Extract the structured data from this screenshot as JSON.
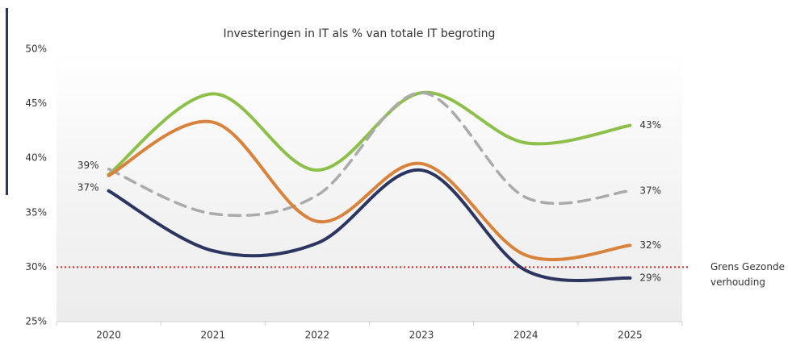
{
  "chart_data": {
    "type": "line",
    "title": "Investeringen in IT als % van totale IT begroting",
    "categories": [
      "2020",
      "2021",
      "2022",
      "2023",
      "2024",
      "2025"
    ],
    "series": [
      {
        "color": "#8dc04a",
        "dash": false,
        "values": [
          38.5,
          45.9,
          38.9,
          46,
          41.4,
          43
        ],
        "value_labels": [
          null,
          null,
          null,
          null,
          null,
          "43%"
        ]
      },
      {
        "color": "#aaaaaa",
        "dash": true,
        "values": [
          39,
          34.9,
          36.6,
          46,
          36.4,
          37
        ],
        "value_labels": [
          "39%",
          null,
          null,
          null,
          null,
          "37%"
        ]
      },
      {
        "color": "#d9823b",
        "dash": false,
        "values": [
          38.4,
          43.3,
          34.2,
          39.5,
          31.1,
          32
        ],
        "value_labels": [
          null,
          null,
          null,
          null,
          null,
          "32%"
        ]
      },
      {
        "color": "#2b3560",
        "dash": false,
        "values": [
          37,
          31.5,
          32.2,
          38.9,
          29.7,
          29
        ],
        "value_labels": [
          "37%",
          null,
          null,
          null,
          null,
          "29%"
        ]
      }
    ],
    "ylim": [
      25,
      50
    ],
    "yticks": [
      {
        "value": 25,
        "label": "25%"
      },
      {
        "value": 30,
        "label": "30%"
      },
      {
        "value": 35,
        "label": "35%"
      },
      {
        "value": 40,
        "label": "40%"
      },
      {
        "value": 45,
        "label": "45%"
      },
      {
        "value": 50,
        "label": "50%"
      }
    ],
    "grid": false,
    "reference_line": {
      "value": 30,
      "color": "#e02020",
      "label": [
        "Grens Gezonde",
        "verhouding"
      ]
    }
  }
}
